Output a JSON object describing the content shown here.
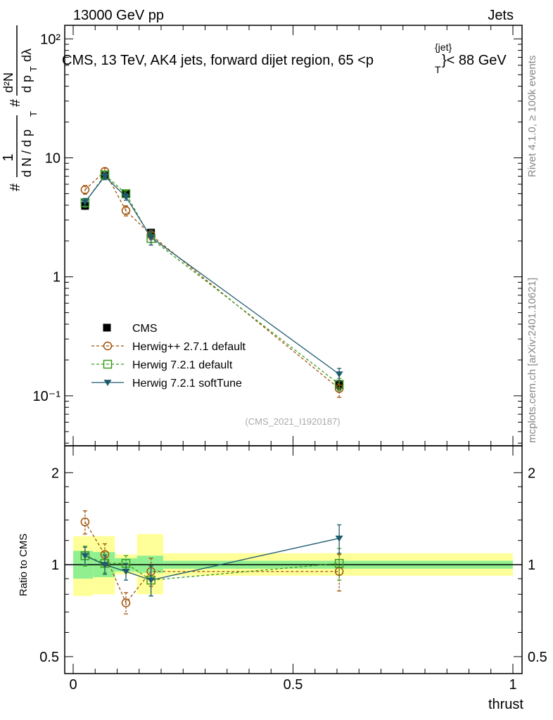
{
  "header": {
    "left": "13000 GeV pp",
    "right": "Jets"
  },
  "title": "CMS, 13 TeV, AK4 jets, forward dijet region, 65 <p",
  "title_sup": "{jet}",
  "title_sub": "T",
  "title_tail": "}< 88 GeV",
  "ylabel": {
    "num_hash": "#",
    "num_one": "1",
    "den": "d N / d p",
    "den_sub": "T",
    "frac_hash": "#",
    "frac_num": "d²N",
    "frac_den": "d p",
    "frac_den_sub": "T",
    "frac_tail": " dλ"
  },
  "side_label_1": "Rivet 4.1.0, ≥ 100k events",
  "side_label_2": "mcplots.cern.ch [arXiv:2401.10621]",
  "watermark": "(CMS_2021_I1920187)",
  "ratio_ylabel": "Ratio to CMS",
  "xlabel": "thrust",
  "colors": {
    "cms": "#000000",
    "herwigpp": "#a0520a",
    "herwig721": "#3c9a1e",
    "softtune": "#1e5a6e",
    "band_inner": "#90f090",
    "band_outer": "#ffff99"
  },
  "chart_data": {
    "type": "line",
    "x_scale": "linear",
    "xlim": [
      0,
      1
    ],
    "x_ticks": [
      {
        "value": 0,
        "label": "0"
      },
      {
        "value": 0.5,
        "label": "0.5"
      },
      {
        "value": 1,
        "label": "1"
      }
    ],
    "main": {
      "y_scale": "log",
      "ylim": [
        0.038,
        130
      ],
      "y_ticks": [
        {
          "value": 100,
          "label": "10²"
        },
        {
          "value": 10,
          "label": "10"
        },
        {
          "value": 1,
          "label": "1"
        },
        {
          "value": 0.1,
          "label": "10⁻¹"
        }
      ],
      "series": [
        {
          "name": "CMS",
          "key": "cms",
          "style": "data",
          "x": [
            0.027,
            0.072,
            0.12,
            0.177,
            0.605
          ],
          "y": [
            3.95,
            7.1,
            4.95,
            2.35,
            0.123
          ],
          "err": [
            0.25,
            0.4,
            0.25,
            0.15,
            0.01
          ]
        },
        {
          "name": "Herwig++ 2.7.1 default",
          "key": "herwigpp",
          "style": "circle",
          "x": [
            0.027,
            0.072,
            0.12,
            0.177,
            0.605
          ],
          "y": [
            5.4,
            7.7,
            3.6,
            2.25,
            0.115
          ],
          "err": [
            0.45,
            0.5,
            0.35,
            0.2,
            0.018
          ]
        },
        {
          "name": "Herwig 7.2.1 default",
          "key": "herwig721",
          "style": "square",
          "x": [
            0.027,
            0.072,
            0.12,
            0.177,
            0.605
          ],
          "y": [
            4.2,
            7.2,
            5.0,
            2.1,
            0.125
          ],
          "err": [
            0.35,
            0.45,
            0.3,
            0.25,
            0.015
          ]
        },
        {
          "name": "Herwig 7.2.1 softTune",
          "key": "softtune",
          "style": "triangle",
          "x": [
            0.027,
            0.072,
            0.12,
            0.177,
            0.605
          ],
          "y": [
            4.25,
            7.0,
            4.7,
            2.15,
            0.152
          ],
          "err": [
            0.3,
            0.45,
            0.3,
            0.3,
            0.018
          ]
        }
      ]
    },
    "ratio": {
      "y_scale": "log",
      "ylim": [
        0.44,
        2.45
      ],
      "y_ticks": [
        {
          "value": 2,
          "label": "2"
        },
        {
          "value": 1,
          "label": "1"
        },
        {
          "value": 0.5,
          "label": "0.5"
        }
      ],
      "bands": {
        "edges": [
          0,
          0.045,
          0.095,
          0.145,
          0.205,
          1
        ],
        "inner": [
          [
            0.9,
            1.11
          ],
          [
            0.91,
            1.1
          ],
          [
            0.95,
            1.05
          ],
          [
            0.94,
            1.07
          ],
          [
            0.97,
            1.03
          ]
        ],
        "outer": [
          [
            0.79,
            1.24
          ],
          [
            0.8,
            1.24
          ],
          [
            0.93,
            1.08
          ],
          [
            0.8,
            1.26
          ],
          [
            0.92,
            1.09
          ]
        ]
      },
      "series": [
        {
          "name": "Herwig++ 2.7.1 default",
          "key": "herwigpp",
          "style": "circle",
          "x": [
            0.027,
            0.072,
            0.12,
            0.177,
            0.605
          ],
          "y": [
            1.38,
            1.08,
            0.75,
            0.95,
            0.95
          ],
          "err": [
            0.12,
            0.09,
            0.06,
            0.1,
            0.13
          ]
        },
        {
          "name": "Herwig 7.2.1 default",
          "key": "herwig721",
          "style": "square",
          "x": [
            0.027,
            0.072,
            0.12,
            0.177,
            0.605
          ],
          "y": [
            1.07,
            1.01,
            1.01,
            0.89,
            1.01
          ],
          "err": [
            0.08,
            0.07,
            0.06,
            0.1,
            0.12
          ]
        },
        {
          "name": "Herwig 7.2.1 softTune",
          "key": "softtune",
          "style": "triangle",
          "x": [
            0.027,
            0.072,
            0.12,
            0.177,
            0.605
          ],
          "y": [
            1.07,
            1.0,
            0.95,
            0.89,
            1.22
          ],
          "err": [
            0.07,
            0.07,
            0.06,
            0.1,
            0.13
          ]
        }
      ]
    },
    "legend": {
      "placement": "lower-left",
      "entries": [
        {
          "label": "CMS",
          "key": "cms",
          "style": "data"
        },
        {
          "label": "Herwig++ 2.7.1 default",
          "key": "herwigpp",
          "style": "circle"
        },
        {
          "label": "Herwig 7.2.1 default",
          "key": "herwig721",
          "style": "square"
        },
        {
          "label": "Herwig 7.2.1 softTune",
          "key": "softtune",
          "style": "triangle"
        }
      ]
    }
  }
}
